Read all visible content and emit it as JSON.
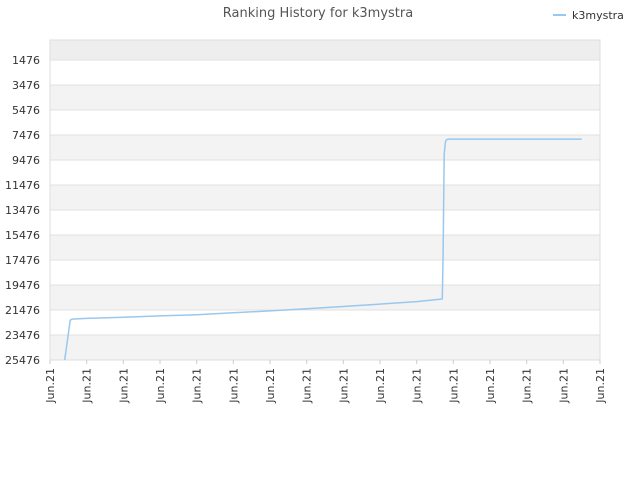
{
  "chart_data": {
    "type": "line",
    "title": "Ranking History for k3mystra",
    "xlabel": "",
    "ylabel": "",
    "y_inverted": true,
    "ylim": [
      25476,
      0
    ],
    "grid": true,
    "legend_position": "top-right",
    "y_ticks": [
      "1476",
      "3476",
      "5476",
      "7476",
      "9476",
      "11476",
      "13476",
      "15476",
      "17476",
      "19476",
      "21476",
      "23476",
      "25476"
    ],
    "y_tick_values": [
      1476,
      3476,
      5476,
      7476,
      9476,
      11476,
      13476,
      15476,
      17476,
      19476,
      21476,
      23476,
      25476
    ],
    "x_ticks": [
      "Jun.21",
      "Jun.21",
      "Jun.21",
      "Jun.21",
      "Jun.21",
      "Jun.21",
      "Jun.21",
      "Jun.21",
      "Jun.21",
      "Jun.21",
      "Jun.21",
      "Jun.21",
      "Jun.21",
      "Jun.21",
      "Jun.21",
      "Jun.21"
    ],
    "series": [
      {
        "name": "k3mystra",
        "color": "#99c8ee",
        "x": [
          0.4,
          0.55,
          0.6,
          1.0,
          2.0,
          3.0,
          4.0,
          5.0,
          6.0,
          7.0,
          8.0,
          9.0,
          10.0,
          10.7,
          10.72,
          10.75,
          10.78,
          10.8,
          10.85,
          11.0,
          12.0,
          13.0,
          14.0,
          14.5
        ],
        "y": [
          25476,
          22300,
          22200,
          22150,
          22050,
          21950,
          21850,
          21700,
          21550,
          21380,
          21200,
          21000,
          20800,
          20600,
          17000,
          9000,
          8100,
          7900,
          7800,
          7800,
          7800,
          7800,
          7800,
          7800
        ]
      }
    ]
  }
}
